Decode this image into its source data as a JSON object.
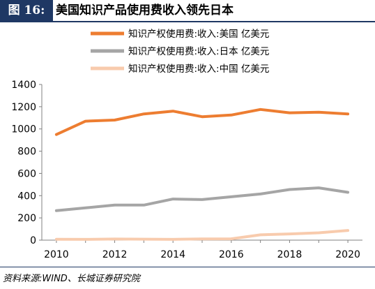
{
  "header": {
    "figure_label": "图 16:",
    "title": "美国知识产品使用费收入领先日本"
  },
  "source": "资料来源:WIND、长城证券研究院",
  "chart_data": {
    "type": "line",
    "title": "",
    "xlabel": "",
    "ylabel": "",
    "x": [
      2010,
      2011,
      2012,
      2013,
      2014,
      2015,
      2016,
      2017,
      2018,
      2019,
      2020
    ],
    "xlim": [
      2009.5,
      2020.5
    ],
    "xticks": [
      2010,
      2012,
      2014,
      2016,
      2018,
      2020
    ],
    "ylim": [
      0,
      1400
    ],
    "yticks": [
      0,
      200,
      400,
      600,
      800,
      1000,
      1200,
      1400
    ],
    "grid": false,
    "legend_position": "top",
    "series": [
      {
        "name": "知识产权使用费:收入:美国 亿美元",
        "color": "#ed7d31",
        "values": [
          950,
          1070,
          1080,
          1135,
          1160,
          1110,
          1125,
          1175,
          1145,
          1150,
          1135
        ]
      },
      {
        "name": "知识产权使用费:收入:日本 亿美元",
        "color": "#a5a5a5",
        "values": [
          265,
          290,
          315,
          315,
          370,
          365,
          390,
          415,
          455,
          470,
          430
        ]
      },
      {
        "name": "知识产权使用费:收入:中国 亿美元",
        "color": "#f8cbad",
        "values": [
          8,
          7,
          10,
          9,
          7,
          11,
          12,
          48,
          56,
          66,
          87
        ]
      }
    ]
  }
}
